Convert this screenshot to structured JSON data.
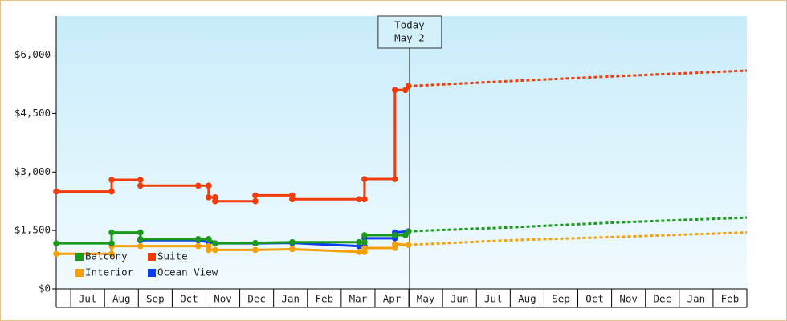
{
  "chart_data": {
    "type": "line",
    "xlim": [
      -0.43,
      20
    ],
    "ylim": [
      0,
      7000
    ],
    "yticks": [
      {
        "value": 0,
        "label": "$0"
      },
      {
        "value": 1500,
        "label": "$1,500"
      },
      {
        "value": 3000,
        "label": "$3,000"
      },
      {
        "value": 4500,
        "label": "$4,500"
      },
      {
        "value": 6000,
        "label": "$6,000"
      }
    ],
    "xticks": [
      {
        "value": 0.5,
        "label": "Jul"
      },
      {
        "value": 1.5,
        "label": "Aug"
      },
      {
        "value": 2.5,
        "label": "Sep"
      },
      {
        "value": 3.5,
        "label": "Oct"
      },
      {
        "value": 4.5,
        "label": "Nov"
      },
      {
        "value": 5.5,
        "label": "Dec"
      },
      {
        "value": 6.5,
        "label": "Jan"
      },
      {
        "value": 7.5,
        "label": "Feb"
      },
      {
        "value": 8.5,
        "label": "Mar"
      },
      {
        "value": 9.5,
        "label": "Apr"
      },
      {
        "value": 10.5,
        "label": "May"
      },
      {
        "value": 11.5,
        "label": "Jun"
      },
      {
        "value": 12.5,
        "label": "Jul"
      },
      {
        "value": 13.5,
        "label": "Aug"
      },
      {
        "value": 14.5,
        "label": "Sep"
      },
      {
        "value": 15.5,
        "label": "Oct"
      },
      {
        "value": 16.5,
        "label": "Nov"
      },
      {
        "value": 17.5,
        "label": "Dec"
      },
      {
        "value": 18.5,
        "label": "Jan"
      },
      {
        "value": 19.5,
        "label": "Feb"
      }
    ],
    "legend": "lower left",
    "annotation": {
      "x": 10.02,
      "lines": [
        "Today",
        "May 2"
      ]
    },
    "series": [
      {
        "name": "Balcony",
        "color": "#1a9a1a",
        "x": [
          -0.43,
          1.21,
          1.21,
          2.06,
          2.06,
          3.77,
          4.08,
          4.27,
          5.46,
          6.55,
          8.53,
          8.69,
          8.69,
          9.59,
          9.9,
          9.99
        ],
        "values": [
          1170,
          1170,
          1450,
          1450,
          1280,
          1280,
          1280,
          1170,
          1180,
          1200,
          1200,
          1200,
          1380,
          1380,
          1380,
          1470
        ],
        "forecast": {
          "x": [
            9.99,
            13,
            16,
            20
          ],
          "values": [
            1480,
            1580,
            1700,
            1830
          ]
        }
      },
      {
        "name": "Suite",
        "color": "#f03c0a",
        "x": [
          -0.43,
          1.21,
          1.21,
          2.06,
          2.06,
          3.77,
          4.08,
          4.08,
          4.27,
          4.27,
          5.46,
          5.46,
          6.55,
          6.55,
          8.53,
          8.69,
          8.69,
          9.59,
          9.59,
          9.9,
          9.99
        ],
        "values": [
          2500,
          2500,
          2800,
          2800,
          2650,
          2650,
          2650,
          2350,
          2350,
          2250,
          2250,
          2400,
          2400,
          2300,
          2300,
          2300,
          2820,
          2820,
          5100,
          5100,
          5200
        ],
        "forecast": {
          "x": [
            9.99,
            13,
            16,
            20
          ],
          "values": [
            5200,
            5330,
            5450,
            5600
          ]
        }
      },
      {
        "name": "Interior",
        "color": "#f5a00a",
        "x": [
          -0.43,
          1.21,
          1.21,
          2.06,
          3.77,
          4.08,
          4.08,
          4.27,
          5.46,
          6.55,
          8.53,
          8.69,
          8.69,
          9.59,
          9.59,
          9.99
        ],
        "values": [
          900,
          900,
          1100,
          1100,
          1100,
          1100,
          1000,
          1000,
          1000,
          1020,
          950,
          950,
          1050,
          1050,
          1150,
          1130
        ],
        "forecast": {
          "x": [
            9.99,
            13,
            16,
            20
          ],
          "values": [
            1130,
            1250,
            1330,
            1450
          ]
        }
      },
      {
        "name": "Ocean View",
        "color": "#0a3cf0",
        "x": [
          2.06,
          3.77,
          4.08,
          4.27,
          5.46,
          6.55,
          8.53,
          8.69,
          8.69,
          9.59,
          9.59,
          9.99
        ],
        "values": [
          1250,
          1250,
          1200,
          1170,
          1170,
          1180,
          1100,
          1100,
          1300,
          1300,
          1450,
          1480
        ]
      }
    ]
  }
}
